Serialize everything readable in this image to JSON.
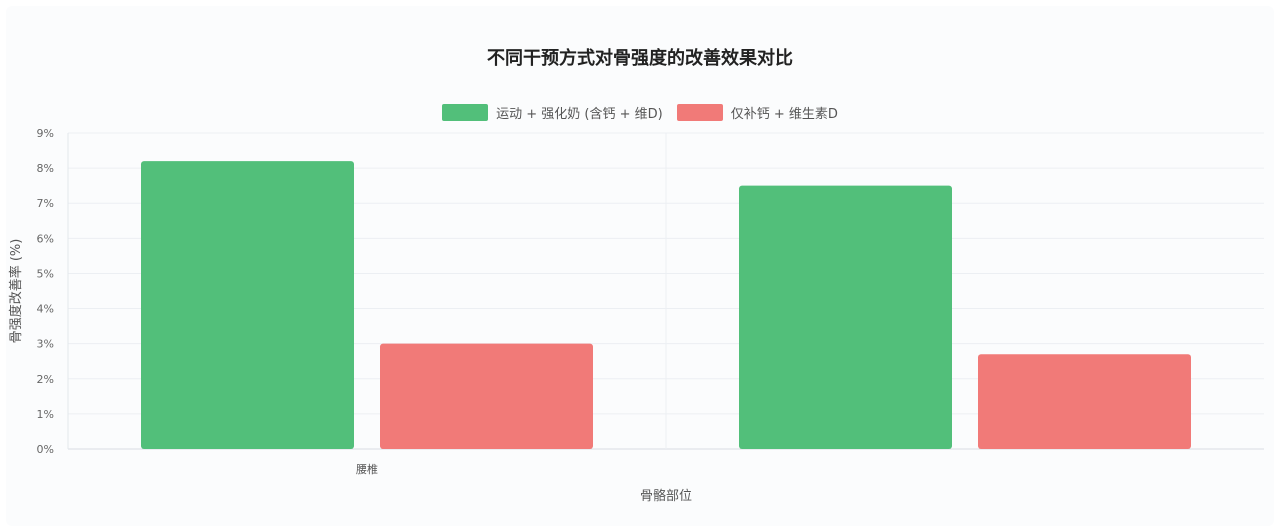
{
  "chart_data": {
    "type": "bar",
    "title": "不同干预方式对骨强度的改善效果对比",
    "xlabel": "骨骼部位",
    "ylabel": "骨强度改善率 (%)",
    "categories": [
      "腰椎",
      ""
    ],
    "series": [
      {
        "name": "运动 + 强化奶 (含钙 + 维D)",
        "values": [
          8.2,
          7.5
        ],
        "color": "#52bf7a"
      },
      {
        "name": "仅补钙 + 维生素D",
        "values": [
          3.0,
          2.7
        ],
        "color": "#f17a78"
      }
    ],
    "ylim": [
      0,
      9
    ],
    "yticks": [
      "0%",
      "1%",
      "2%",
      "3%",
      "4%",
      "5%",
      "6%",
      "7%",
      "8%",
      "9%"
    ],
    "grid": true,
    "legend": "top"
  }
}
